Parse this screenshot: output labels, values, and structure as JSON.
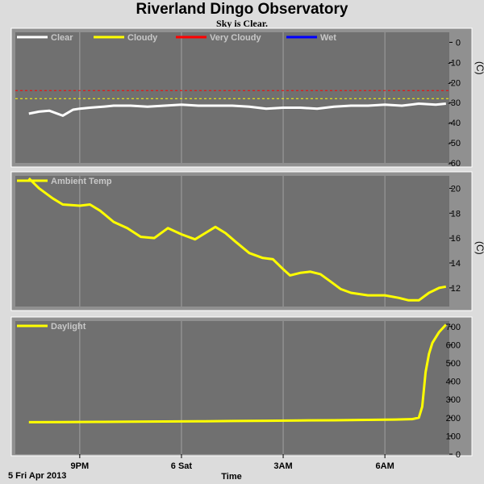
{
  "title": "Riverland Dingo Observatory",
  "subtitle": "Sky is Clear.",
  "colors": {
    "clear": "#ffffff",
    "cloudy": "#ffff00",
    "very_cloudy": "#ff0000",
    "wet": "#0000ff",
    "plot_bg": "#707070",
    "page_bg": "#dcdcdc"
  },
  "x_axis": {
    "label": "Time",
    "date_label": "5 Fri Apr 2013",
    "ticks": [
      {
        "hour": 21,
        "label": "9PM"
      },
      {
        "hour": 24,
        "label": "6 Sat"
      },
      {
        "hour": 27,
        "label": "3AM"
      },
      {
        "hour": 30,
        "label": "6AM"
      }
    ]
  },
  "chart_data": [
    {
      "type": "line",
      "unit": "(C)",
      "ylim": [
        -60,
        5
      ],
      "yticks": [
        0,
        -10,
        -20,
        -30,
        -40,
        -50,
        -60
      ],
      "legend_placement": "top-left",
      "series": [
        {
          "name": "Clear",
          "color": "#ffffff",
          "x": [
            19.5,
            19.8,
            20.1,
            20.5,
            20.8,
            21.0,
            21.3,
            21.7,
            22.0,
            22.5,
            23.0,
            23.5,
            24.0,
            24.5,
            25.0,
            25.5,
            26.0,
            26.5,
            27.0,
            27.5,
            28.0,
            28.5,
            29.0,
            29.5,
            30.0,
            30.5,
            31.0,
            31.5,
            31.8
          ],
          "y": [
            -35.5,
            -34.5,
            -34.0,
            -36.5,
            -33.5,
            -33.0,
            -32.5,
            -32.0,
            -31.5,
            -31.5,
            -32.0,
            -31.5,
            -31.0,
            -31.5,
            -31.5,
            -31.5,
            -32.0,
            -33.0,
            -32.5,
            -32.5,
            -33.0,
            -32.0,
            -31.5,
            -31.5,
            -31.0,
            -31.5,
            -30.5,
            -31.0,
            -30.5
          ]
        },
        {
          "name": "Cloudy",
          "color": "#ffff00",
          "threshold": -28
        },
        {
          "name": "Very Cloudy",
          "color": "#ff0000",
          "threshold": -24
        },
        {
          "name": "Wet",
          "color": "#0000ff"
        }
      ]
    },
    {
      "type": "line",
      "unit": "(C)",
      "ylim": [
        10.5,
        21
      ],
      "yticks": [
        20,
        18,
        16,
        14,
        12
      ],
      "legend_placement": "top-left",
      "series": [
        {
          "name": "Ambient Temp",
          "color": "#ffff00",
          "x": [
            19.5,
            19.8,
            20.2,
            20.5,
            21.0,
            21.3,
            21.6,
            22.0,
            22.4,
            22.8,
            23.2,
            23.6,
            24.0,
            24.4,
            24.7,
            25.0,
            25.3,
            25.6,
            26.0,
            26.4,
            26.7,
            27.0,
            27.2,
            27.5,
            27.8,
            28.1,
            28.4,
            28.7,
            29.0,
            29.5,
            30.0,
            30.4,
            30.7,
            31.0,
            31.3,
            31.6,
            31.8
          ],
          "y": [
            20.8,
            20.0,
            19.2,
            18.7,
            18.6,
            18.7,
            18.2,
            17.3,
            16.8,
            16.1,
            16.0,
            16.8,
            16.3,
            15.9,
            16.4,
            16.9,
            16.4,
            15.7,
            14.8,
            14.4,
            14.3,
            13.5,
            13.0,
            13.2,
            13.3,
            13.1,
            12.5,
            11.9,
            11.6,
            11.4,
            11.4,
            11.2,
            11.0,
            11.0,
            11.6,
            12.0,
            12.1
          ]
        }
      ]
    },
    {
      "type": "line",
      "ylim": [
        0,
        730
      ],
      "yticks": [
        700,
        600,
        500,
        400,
        300,
        200,
        100,
        0
      ],
      "legend_placement": "top-left",
      "series": [
        {
          "name": "Daylight",
          "color": "#ffff00",
          "x": [
            19.5,
            20.5,
            21.5,
            22.5,
            23.5,
            24.5,
            25.5,
            26.5,
            27.5,
            28.5,
            29.5,
            30.3,
            30.8,
            31.0,
            31.1,
            31.2,
            31.3,
            31.4,
            31.6,
            31.8
          ],
          "y": [
            175,
            176,
            177,
            178,
            179,
            180,
            182,
            183,
            185,
            186,
            188,
            190,
            192,
            200,
            260,
            450,
            550,
            610,
            670,
            710
          ]
        }
      ]
    }
  ]
}
